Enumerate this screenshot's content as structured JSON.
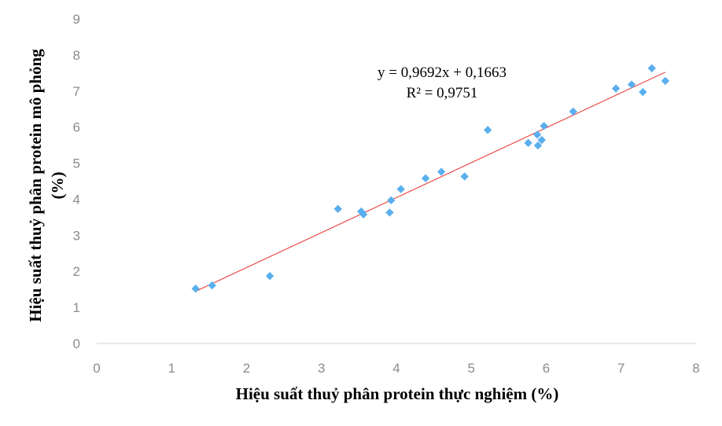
{
  "chart_data": {
    "type": "scatter",
    "title": "",
    "xlabel": "Hiệu suất thuỷ phân protein thực nghiệm (%)",
    "ylabel_line1": "Hiệu suất thuỷ phân protein mô phỏng",
    "ylabel_line2": "(%)",
    "xlim": [
      0,
      8
    ],
    "ylim": [
      0,
      9
    ],
    "x_ticks": [
      0,
      1,
      2,
      3,
      4,
      5,
      6,
      7,
      8
    ],
    "y_ticks": [
      0,
      1,
      2,
      3,
      4,
      5,
      6,
      7,
      8,
      9
    ],
    "grid": false,
    "legend": "none",
    "points": [
      {
        "x": 1.32,
        "y": 1.52
      },
      {
        "x": 1.54,
        "y": 1.61
      },
      {
        "x": 2.31,
        "y": 1.87
      },
      {
        "x": 3.22,
        "y": 3.73
      },
      {
        "x": 3.53,
        "y": 3.66
      },
      {
        "x": 3.56,
        "y": 3.58
      },
      {
        "x": 3.91,
        "y": 3.63
      },
      {
        "x": 3.93,
        "y": 3.97
      },
      {
        "x": 4.06,
        "y": 4.28
      },
      {
        "x": 4.39,
        "y": 4.58
      },
      {
        "x": 4.6,
        "y": 4.76
      },
      {
        "x": 4.91,
        "y": 4.63
      },
      {
        "x": 5.22,
        "y": 5.92
      },
      {
        "x": 5.76,
        "y": 5.56
      },
      {
        "x": 5.88,
        "y": 5.79
      },
      {
        "x": 5.89,
        "y": 5.49
      },
      {
        "x": 5.94,
        "y": 5.64
      },
      {
        "x": 5.97,
        "y": 6.03
      },
      {
        "x": 6.36,
        "y": 6.43
      },
      {
        "x": 6.93,
        "y": 7.07
      },
      {
        "x": 7.14,
        "y": 7.18
      },
      {
        "x": 7.29,
        "y": 6.97
      },
      {
        "x": 7.41,
        "y": 7.63
      },
      {
        "x": 7.59,
        "y": 7.28
      }
    ],
    "trendline": {
      "slope": 0.9692,
      "intercept": 0.1663,
      "x_start": 1.32,
      "x_end": 7.59,
      "equation_text": "y = 0,9692x + 0,1663",
      "r2_text": "R² = 0,9751"
    },
    "colors": {
      "marker": "#5aafee",
      "trendline": "#e8312f",
      "axis": "#d9d9d9",
      "tick_text": "#8c8c8c"
    }
  }
}
